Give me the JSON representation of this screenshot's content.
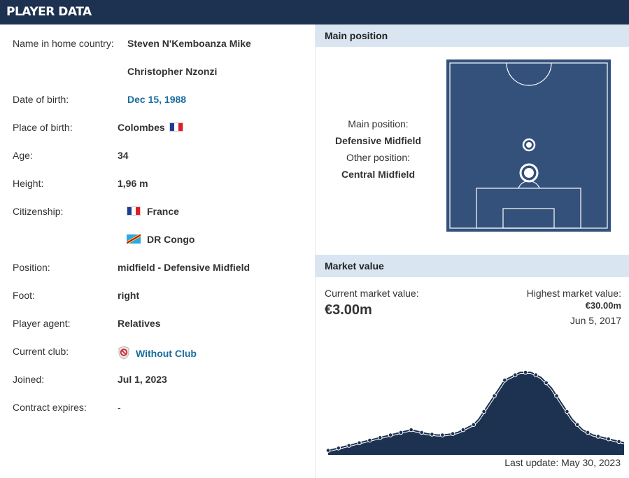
{
  "header": {
    "title": "PLAYER DATA"
  },
  "player": {
    "name_label": "Name in home country:",
    "name_line1": "Steven N'Kembo­anza Mike",
    "name_line2": "Christopher Nzonzi",
    "dob_label": "Date of birth:",
    "dob": "Dec 15, 1988",
    "pob_label": "Place of birth:",
    "pob": "Colombes",
    "age_label": "Age:",
    "age": "34",
    "height_label": "Height:",
    "height": "1,96 m",
    "citizenship_label": "Citizenship:",
    "citizenship": [
      "France",
      "DR Congo"
    ],
    "position_label": "Position:",
    "position": "midfield - Defensive Midfield",
    "foot_label": "Foot:",
    "foot": "right",
    "agent_label": "Player agent:",
    "agent": "Relatives",
    "club_label": "Current club:",
    "club": "Without Club",
    "joined_label": "Joined:",
    "joined": "Jul 1, 2023",
    "contract_label": "Contract expires:",
    "contract": "-"
  },
  "main_position": {
    "title": "Main position",
    "main_label": "Main position:",
    "main": "Defensive Midfield",
    "other_label": "Other position:",
    "other": "Central Midfield"
  },
  "market_value": {
    "title": "Market value",
    "current_label": "Current market value:",
    "current": "€3.00m",
    "highest_label": "Highest market value:",
    "highest": "€30.00m",
    "highest_date": "Jun 5, 2017",
    "last_update": "Last update: May 30, 2023"
  },
  "colors": {
    "header": "#1d3150",
    "link": "#1a6ca0",
    "pitch": "#34517c",
    "section": "#d9e6f1"
  },
  "chart_data": {
    "type": "area",
    "series": [
      {
        "values": [
          0.1,
          0.5,
          1.0,
          1.5,
          2.0,
          2.5,
          3.0,
          3.5,
          4.0,
          4.5,
          5.0,
          5.5,
          6.0,
          6.5,
          7.0,
          7.5,
          8.0,
          7.5,
          7.0,
          6.5,
          6.3,
          6.0,
          6.0,
          6.2,
          6.5,
          7.0,
          8.0,
          9.0,
          10.0,
          12.0,
          15.0,
          18.0,
          21.0,
          24.0,
          27.0,
          28.0,
          29.0,
          30.0,
          30.0,
          30.0,
          29.0,
          28.0,
          26.0,
          24.0,
          21.0,
          18.0,
          15.0,
          12.0,
          10.0,
          8.0,
          7.0,
          6.0,
          5.5,
          5.0,
          4.5,
          4.0,
          3.5,
          3.0
        ]
      }
    ]
  }
}
